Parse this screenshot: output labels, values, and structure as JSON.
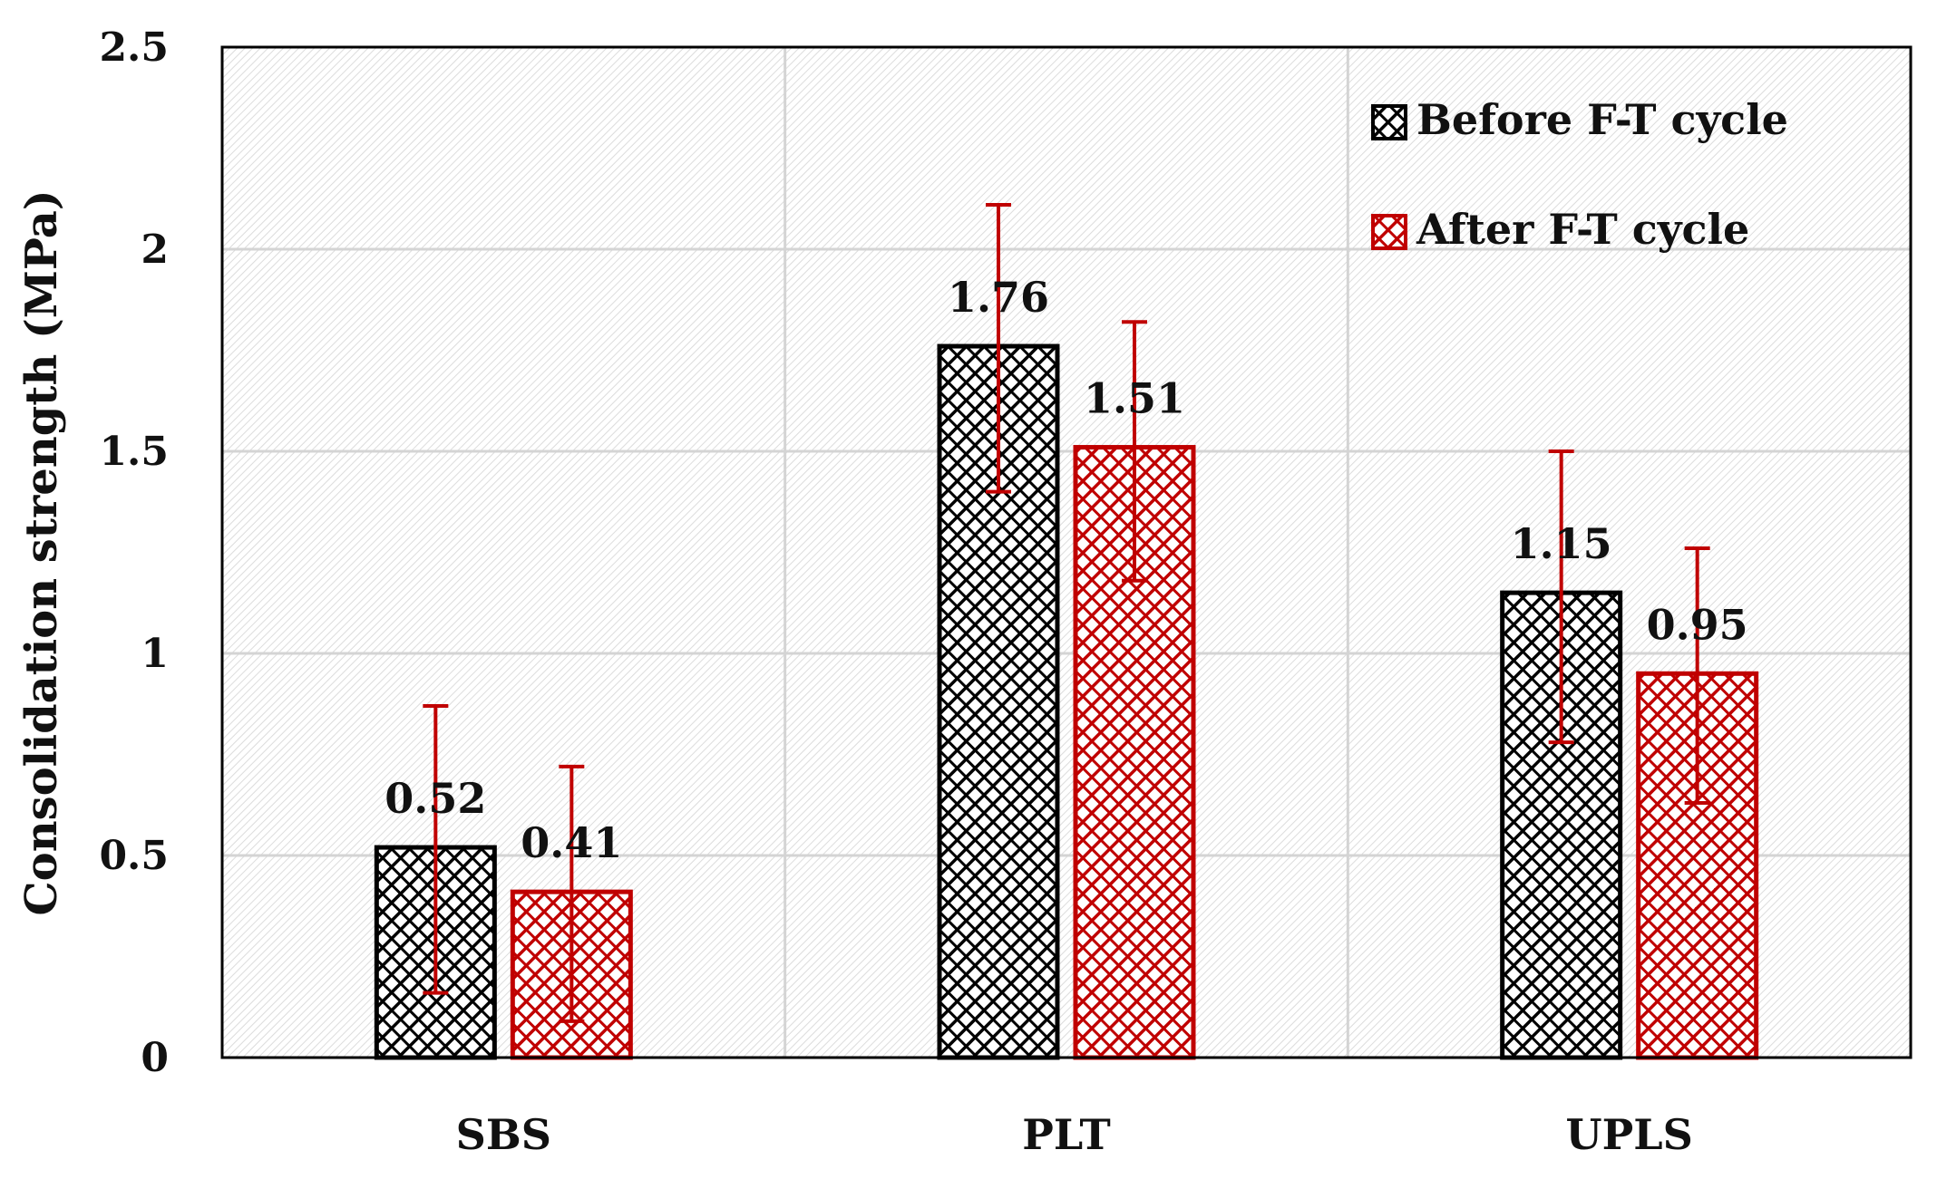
{
  "chart_data": {
    "type": "bar",
    "title": "",
    "xlabel": "",
    "ylabel": "Consolidation strength (MPa)",
    "ylim": [
      0,
      2.5
    ],
    "yticks": [
      "0",
      "0.5",
      "1",
      "1.5",
      "2",
      "2.5"
    ],
    "grid": true,
    "legend_position": "top-right",
    "categories": [
      "SBS",
      "PLT",
      "UPLS"
    ],
    "series": [
      {
        "name": "Before F-T cycle",
        "color": "#000000",
        "values": [
          0.52,
          1.76,
          1.15
        ],
        "labels": [
          "0.52",
          "1.76",
          "1.15"
        ],
        "error_low": [
          0.16,
          1.4,
          0.78
        ],
        "error_high": [
          0.87,
          2.11,
          1.5
        ]
      },
      {
        "name": "After F-T cycle",
        "color": "#c00000",
        "values": [
          0.41,
          1.51,
          0.95
        ],
        "labels": [
          "0.41",
          "1.51",
          "0.95"
        ],
        "error_low": [
          0.09,
          1.18,
          0.63
        ],
        "error_high": [
          0.72,
          1.82,
          1.26
        ]
      }
    ],
    "error_bar_color": "#c00000"
  }
}
